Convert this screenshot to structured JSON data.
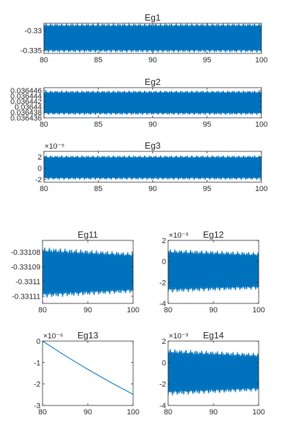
{
  "chart_data": [
    {
      "type": "line",
      "title": "Eg1",
      "xlim": [
        80,
        100
      ],
      "xticks": [
        80,
        85,
        90,
        95,
        100
      ],
      "xtick_labels": [
        "80",
        "85",
        "90",
        "95",
        "100"
      ],
      "ylim": [
        -0.3358,
        -0.3282
      ],
      "yticks": [
        -0.33,
        -0.335
      ],
      "ytick_labels": [
        "-0.33",
        "-0.335"
      ],
      "exponent_label": "",
      "series": [
        {
          "style": "dense_oscillation",
          "color": "#0072BD",
          "center": [
            -0.3319,
            -0.3319
          ],
          "amplitude": [
            0.0037,
            0.0037
          ]
        }
      ]
    },
    {
      "type": "line",
      "title": "Eg2",
      "xlim": [
        80,
        100
      ],
      "xticks": [
        80,
        85,
        90,
        95,
        100
      ],
      "xtick_labels": [
        "80",
        "85",
        "90",
        "95",
        "100"
      ],
      "ylim": [
        0.036436,
        0.036447
      ],
      "yticks": [
        0.036446,
        0.036444,
        0.036442,
        0.03644,
        0.036438,
        0.036436
      ],
      "ytick_labels": [
        "0.036446",
        "0.036444",
        "0.036442",
        "0.03644",
        "0.036438",
        "0.036436"
      ],
      "exponent_label": "",
      "series": [
        {
          "style": "dense_oscillation",
          "color": "#0072BD",
          "center": [
            0.0364415,
            0.0364415
          ],
          "amplitude": [
            4.5e-06,
            4.5e-06
          ]
        }
      ]
    },
    {
      "type": "line",
      "title": "Eg3",
      "xlim": [
        80,
        100
      ],
      "xticks": [
        80,
        85,
        90,
        95,
        100
      ],
      "xtick_labels": [
        "80",
        "85",
        "90",
        "95",
        "100"
      ],
      "ylim": [
        -2.5,
        3
      ],
      "yticks": [
        2,
        0,
        -2
      ],
      "ytick_labels": [
        "2",
        "0",
        "-2"
      ],
      "exponent_label": "×10⁻⁵",
      "series": [
        {
          "style": "dense_oscillation",
          "color": "#0072BD",
          "center": [
            0.1,
            0.1
          ],
          "amplitude": [
            2.2,
            2.2
          ]
        }
      ]
    },
    {
      "type": "line",
      "title": "Eg11",
      "xlim": [
        80,
        100
      ],
      "xticks": [
        80,
        90,
        100
      ],
      "xtick_labels": [
        "80",
        "90",
        "100"
      ],
      "ylim": [
        -0.331115,
        -0.331072
      ],
      "yticks": [
        -0.33108,
        -0.33109,
        -0.3311,
        -0.33111
      ],
      "ytick_labels": [
        "-0.33108",
        "-0.33109",
        "-0.3311",
        "-0.33111"
      ],
      "exponent_label": "",
      "series": [
        {
          "style": "dense_oscillation",
          "color": "#0072BD",
          "center": [
            -0.331094,
            -0.331094
          ],
          "amplitude": [
            1.75e-05,
            1.4e-05
          ]
        }
      ]
    },
    {
      "type": "line",
      "title": "Eg12",
      "xlim": [
        80,
        100
      ],
      "xticks": [
        80,
        90,
        100
      ],
      "xtick_labels": [
        "80",
        "90",
        "100"
      ],
      "ylim": [
        -4,
        2
      ],
      "yticks": [
        2,
        0,
        -2,
        -4
      ],
      "ytick_labels": [
        "2",
        "0",
        "-2",
        "-4"
      ],
      "exponent_label": "×10⁻³",
      "series": [
        {
          "style": "dense_oscillation",
          "color": "#0072BD",
          "center": [
            -0.9,
            -0.9
          ],
          "amplitude": [
            2.1,
            1.8
          ]
        }
      ]
    },
    {
      "type": "line",
      "title": "Eg13",
      "xlim": [
        80,
        100
      ],
      "xticks": [
        80,
        90,
        100
      ],
      "xtick_labels": [
        "80",
        "90",
        "100"
      ],
      "ylim": [
        -3,
        0
      ],
      "yticks": [
        0,
        -1,
        -2,
        -3
      ],
      "ytick_labels": [
        "0",
        "-1",
        "-2",
        "-3"
      ],
      "exponent_label": "×10⁻⁶",
      "series": [
        {
          "style": "smooth_curve",
          "color": "#0072BD",
          "x": [
            80,
            85,
            90,
            95,
            100
          ],
          "y": [
            0,
            -0.68,
            -1.32,
            -1.92,
            -2.48
          ]
        }
      ]
    },
    {
      "type": "line",
      "title": "Eg14",
      "xlim": [
        80,
        100
      ],
      "xticks": [
        80,
        90,
        100
      ],
      "xtick_labels": [
        "80",
        "90",
        "100"
      ],
      "ylim": [
        -4,
        2
      ],
      "yticks": [
        2,
        0,
        -2,
        -4
      ],
      "ytick_labels": [
        "2",
        "0",
        "-2",
        "-4"
      ],
      "exponent_label": "×10⁻³",
      "series": [
        {
          "style": "dense_oscillation",
          "color": "#0072BD",
          "center": [
            -0.9,
            -0.9
          ],
          "amplitude": [
            2.2,
            1.8
          ]
        }
      ]
    }
  ]
}
